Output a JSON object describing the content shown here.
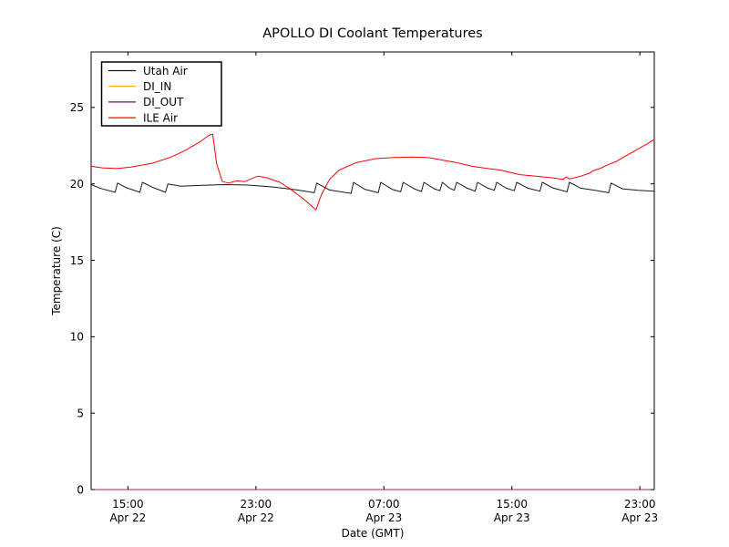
{
  "figure": {
    "title": "APOLLO DI Coolant Temperatures",
    "xlabel": "Date (GMT)",
    "ylabel": "Temperature (C)"
  },
  "colors": {
    "background": "#ffffff",
    "axes": "#000000",
    "utah_air": "#1a1a1a",
    "di_in": "#ffa500",
    "di_out": "#800080",
    "ile_air": "#ff0000"
  },
  "chart_data": {
    "type": "line",
    "title": "APOLLO DI Coolant Temperatures",
    "xlabel": "Date (GMT)",
    "ylabel": "Temperature (C)",
    "grid": false,
    "legend_position": "upper left",
    "legend_entries": [
      "Utah Air",
      "DI_IN",
      "DI_OUT",
      "ILE Air"
    ],
    "x_unit": "hours since Apr 22 00:00 GMT",
    "xlim": [
      12.7,
      47.9
    ],
    "ylim": [
      0,
      28.63
    ],
    "y_ticks": [
      0,
      5,
      10,
      15,
      20,
      25
    ],
    "x_ticks": [
      {
        "t": 15,
        "line1": "15:00",
        "line2": "Apr 22"
      },
      {
        "t": 23,
        "line1": "23:00",
        "line2": "Apr 22"
      },
      {
        "t": 31,
        "line1": "07:00",
        "line2": "Apr 23"
      },
      {
        "t": 39,
        "line1": "15:00",
        "line2": "Apr 23"
      },
      {
        "t": 47,
        "line1": "23:00",
        "line2": "Apr 23"
      }
    ],
    "series": [
      {
        "name": "Utah Air",
        "color": "#1a1a1a",
        "opacity": 1,
        "points": [
          [
            12.7,
            19.95
          ],
          [
            13.3,
            19.7
          ],
          [
            14.2,
            19.45
          ],
          [
            14.35,
            20.05
          ],
          [
            14.9,
            19.75
          ],
          [
            15.75,
            19.45
          ],
          [
            15.9,
            20.1
          ],
          [
            16.6,
            19.75
          ],
          [
            17.35,
            19.45
          ],
          [
            17.5,
            20.0
          ],
          [
            18.3,
            19.85
          ],
          [
            19.5,
            19.9
          ],
          [
            21.0,
            19.95
          ],
          [
            22.5,
            19.92
          ],
          [
            24.0,
            19.8
          ],
          [
            25.5,
            19.62
          ],
          [
            26.65,
            19.42
          ],
          [
            26.8,
            20.05
          ],
          [
            27.6,
            19.6
          ],
          [
            28.95,
            19.38
          ],
          [
            29.1,
            20.1
          ],
          [
            29.8,
            19.65
          ],
          [
            30.65,
            19.42
          ],
          [
            30.8,
            20.1
          ],
          [
            31.5,
            19.65
          ],
          [
            32.05,
            19.48
          ],
          [
            32.2,
            20.1
          ],
          [
            32.9,
            19.68
          ],
          [
            33.35,
            19.5
          ],
          [
            33.5,
            20.1
          ],
          [
            34.15,
            19.68
          ],
          [
            34.5,
            19.55
          ],
          [
            34.65,
            20.1
          ],
          [
            35.1,
            19.72
          ],
          [
            35.4,
            19.58
          ],
          [
            35.55,
            20.1
          ],
          [
            36.2,
            19.72
          ],
          [
            36.7,
            19.52
          ],
          [
            36.85,
            20.1
          ],
          [
            37.5,
            19.72
          ],
          [
            37.9,
            19.58
          ],
          [
            38.05,
            20.1
          ],
          [
            38.65,
            19.72
          ],
          [
            39.15,
            19.55
          ],
          [
            39.3,
            20.1
          ],
          [
            40.0,
            19.72
          ],
          [
            40.75,
            19.52
          ],
          [
            40.9,
            20.1
          ],
          [
            41.6,
            19.72
          ],
          [
            42.45,
            19.48
          ],
          [
            42.6,
            20.1
          ],
          [
            43.3,
            19.72
          ],
          [
            44.2,
            19.58
          ],
          [
            45.05,
            19.42
          ],
          [
            45.2,
            20.05
          ],
          [
            45.9,
            19.68
          ],
          [
            46.9,
            19.58
          ],
          [
            47.9,
            19.52
          ]
        ]
      },
      {
        "name": "DI_IN",
        "color": "#ffa500",
        "opacity": 1,
        "points": [
          [
            12.7,
            0
          ],
          [
            47.9,
            0
          ]
        ]
      },
      {
        "name": "DI_OUT",
        "color": "#800080",
        "opacity": 0.75,
        "points": [
          [
            12.7,
            0
          ],
          [
            47.9,
            0
          ]
        ]
      },
      {
        "name": "ILE Air",
        "color": "#ff0000",
        "opacity": 1,
        "points": [
          [
            12.7,
            21.15
          ],
          [
            13.4,
            21.05
          ],
          [
            14.3,
            21.0
          ],
          [
            15.2,
            21.1
          ],
          [
            16.5,
            21.35
          ],
          [
            17.7,
            21.75
          ],
          [
            18.6,
            22.2
          ],
          [
            19.5,
            22.75
          ],
          [
            20.1,
            23.2
          ],
          [
            20.3,
            23.25
          ],
          [
            20.55,
            21.3
          ],
          [
            20.9,
            20.15
          ],
          [
            21.3,
            20.05
          ],
          [
            21.8,
            20.2
          ],
          [
            22.3,
            20.15
          ],
          [
            23.1,
            20.5
          ],
          [
            23.7,
            20.4
          ],
          [
            24.5,
            20.1
          ],
          [
            25.1,
            19.7
          ],
          [
            26.0,
            19.0
          ],
          [
            26.75,
            18.3
          ],
          [
            27.1,
            19.3
          ],
          [
            27.6,
            20.3
          ],
          [
            28.2,
            20.9
          ],
          [
            29.3,
            21.4
          ],
          [
            30.5,
            21.65
          ],
          [
            31.5,
            21.72
          ],
          [
            32.8,
            21.75
          ],
          [
            33.8,
            21.72
          ],
          [
            34.7,
            21.55
          ],
          [
            35.5,
            21.4
          ],
          [
            36.5,
            21.15
          ],
          [
            37.5,
            21.0
          ],
          [
            38.3,
            20.9
          ],
          [
            39.5,
            20.6
          ],
          [
            40.5,
            20.5
          ],
          [
            41.5,
            20.4
          ],
          [
            42.2,
            20.3
          ],
          [
            42.4,
            20.45
          ],
          [
            42.6,
            20.32
          ],
          [
            43.3,
            20.5
          ],
          [
            43.9,
            20.72
          ],
          [
            44.05,
            20.85
          ],
          [
            44.5,
            21.0
          ],
          [
            45.0,
            21.25
          ],
          [
            45.5,
            21.45
          ],
          [
            45.9,
            21.7
          ],
          [
            46.5,
            22.05
          ],
          [
            47.0,
            22.35
          ],
          [
            47.5,
            22.65
          ],
          [
            47.9,
            22.9
          ]
        ]
      }
    ]
  }
}
